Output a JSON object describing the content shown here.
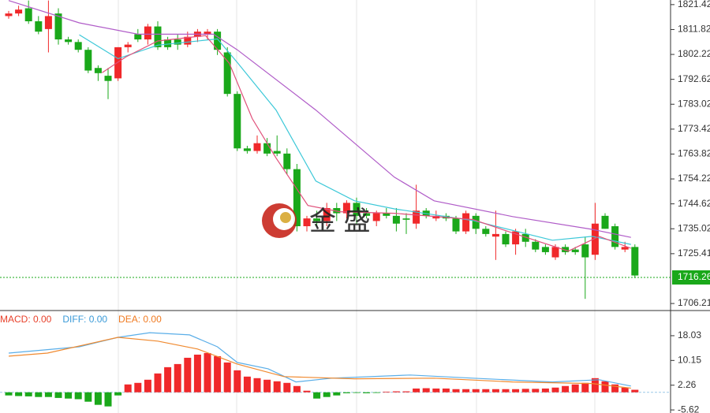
{
  "chart_data": [
    {
      "type": "candlestick",
      "up_color": "#f0282a",
      "down_color": "#1aa81a",
      "ylim": [
        1703.8,
        1823.2
      ],
      "yticks": [
        1821.42,
        1811.82,
        1802.22,
        1792.62,
        1783.02,
        1773.42,
        1763.82,
        1754.22,
        1744.62,
        1735.02,
        1725.41,
        1706.21
      ],
      "last_price": {
        "value": 1716.26,
        "color": "#1aa81a"
      },
      "watermark": "金 盛",
      "ohlc": [
        [
          1817,
          1819,
          1816,
          1818
        ],
        [
          1818,
          1821,
          1817,
          1819.5
        ],
        [
          1820,
          1823,
          1814,
          1815
        ],
        [
          1815,
          1817,
          1810,
          1811
        ],
        [
          1812,
          1823,
          1803,
          1817
        ],
        [
          1818,
          1820,
          1806,
          1808
        ],
        [
          1808,
          1809,
          1806,
          1807
        ],
        [
          1807,
          1808,
          1803,
          1804
        ],
        [
          1804,
          1805,
          1795,
          1796
        ],
        [
          1797,
          1798,
          1792,
          1795
        ],
        [
          1794,
          1797,
          1785,
          1792
        ],
        [
          1793,
          1805,
          1792,
          1805
        ],
        [
          1805,
          1807,
          1803,
          1806
        ],
        [
          1810,
          1812,
          1807,
          1808
        ],
        [
          1808,
          1814,
          1806,
          1813
        ],
        [
          1813,
          1815,
          1804,
          1805
        ],
        [
          1808,
          1809,
          1804,
          1805
        ],
        [
          1808,
          1810,
          1804,
          1806
        ],
        [
          1806,
          1811,
          1805,
          1809
        ],
        [
          1809,
          1812,
          1807,
          1811
        ],
        [
          1810,
          1812,
          1808,
          1811
        ],
        [
          1811,
          1812,
          1802,
          1804
        ],
        [
          1803,
          1805,
          1786,
          1787
        ],
        [
          1787,
          1788,
          1765,
          1766
        ],
        [
          1766,
          1767,
          1764,
          1765
        ],
        [
          1765,
          1771,
          1764,
          1768
        ],
        [
          1768,
          1770,
          1763,
          1764
        ],
        [
          1765,
          1771,
          1763,
          1764
        ],
        [
          1764,
          1766,
          1756,
          1758
        ],
        [
          1758,
          1760,
          1734,
          1736
        ],
        [
          1736,
          1740,
          1734,
          1739
        ],
        [
          1739,
          1742,
          1736,
          1738
        ],
        [
          1738,
          1745,
          1736,
          1743
        ],
        [
          1743,
          1745,
          1738,
          1741
        ],
        [
          1741,
          1746,
          1739,
          1745
        ],
        [
          1745,
          1747,
          1737,
          1740
        ],
        [
          1741,
          1743,
          1739,
          1740
        ],
        [
          1738,
          1742,
          1736,
          1741
        ],
        [
          1741,
          1743,
          1739,
          1740
        ],
        [
          1740,
          1743,
          1734,
          1737
        ],
        [
          1739,
          1741,
          1733,
          1738.5
        ],
        [
          1737,
          1752,
          1735,
          1742
        ],
        [
          1742,
          1743,
          1739,
          1740
        ],
        [
          1739,
          1742,
          1738,
          1740
        ],
        [
          1740,
          1741,
          1738,
          1739
        ],
        [
          1739,
          1740,
          1733,
          1734
        ],
        [
          1734,
          1742,
          1733,
          1741
        ],
        [
          1740,
          1741,
          1733,
          1735
        ],
        [
          1735,
          1736,
          1732,
          1733
        ],
        [
          1732,
          1742,
          1723,
          1733
        ],
        [
          1733,
          1734,
          1728,
          1729
        ],
        [
          1729,
          1735,
          1725,
          1734
        ],
        [
          1733,
          1735,
          1728,
          1730
        ],
        [
          1730,
          1731,
          1726,
          1727
        ],
        [
          1728,
          1729,
          1725,
          1726
        ],
        [
          1724,
          1729,
          1723,
          1728
        ],
        [
          1728,
          1729,
          1725,
          1726
        ],
        [
          1727,
          1728,
          1725,
          1726
        ],
        [
          1729,
          1732,
          1708,
          1724
        ],
        [
          1725,
          1745,
          1723,
          1737
        ],
        [
          1740,
          1741,
          1735,
          1735
        ],
        [
          1736,
          1737,
          1727,
          1728
        ],
        [
          1727,
          1730,
          1726,
          1728
        ],
        [
          1728,
          1729,
          1716,
          1717
        ]
      ],
      "lines": [
        {
          "color": "#b05cc8",
          "x": [
            0,
            7.1,
            13,
            20.6,
            23,
            30.9,
            38.8,
            42.8,
            50.7,
            58.7,
            62.6
          ],
          "values": [
            1823,
            1814.4,
            1810,
            1810,
            1804,
            1780.8,
            1754.9,
            1745.8,
            1739.7,
            1734.8,
            1731.7
          ]
        },
        {
          "color": "#3cc8d8",
          "x": [
            7.1,
            11,
            15,
            21,
            23,
            26.9,
            30.9,
            34.8,
            38.8,
            46.7,
            54.7,
            58.7,
            62.6
          ],
          "values": [
            1809.8,
            1800.6,
            1805.8,
            1808.2,
            1799.1,
            1780.8,
            1753.4,
            1745.8,
            1742.7,
            1738.2,
            1730.6,
            1732.1,
            1729
          ]
        },
        {
          "color": "#e0507a",
          "x": [
            9.4,
            11.8,
            15,
            19.8,
            22.2,
            24.5,
            26.9,
            30.1,
            33.3,
            38.8,
            46.7,
            50.7,
            56.3,
            59.4,
            62.6
          ],
          "values": [
            1795.2,
            1801.3,
            1807.4,
            1809.5,
            1798.8,
            1777.5,
            1762.3,
            1744,
            1741.6,
            1741,
            1738.6,
            1733.4,
            1726.4,
            1732.1,
            1727.5
          ]
        }
      ]
    },
    {
      "type": "macd",
      "ylim": [
        -6.6,
        25.8
      ],
      "yticks": [
        18.03,
        10.15,
        2.26,
        -5.62
      ],
      "legend": [
        {
          "text": "MACD: 0.00",
          "color": "#e8402a"
        },
        {
          "text": "DIFF: 0.00",
          "color": "#3a9ad8"
        },
        {
          "text": "DEA: 0.00",
          "color": "#f07a20"
        }
      ],
      "up_color": "#f0282a",
      "down_color": "#1aa81a",
      "histogram": [
        -1,
        -1.2,
        -1.3,
        -1.5,
        -1.5,
        -1.8,
        -2,
        -2.2,
        -3,
        -4,
        -4.5,
        -1,
        2.5,
        3,
        4,
        6,
        8,
        9,
        11,
        12,
        12.5,
        11.5,
        9.5,
        7,
        5,
        4.5,
        4,
        3.5,
        3,
        2,
        0.5,
        -2,
        -1.5,
        -1,
        -0.3,
        -0.2,
        -0.3,
        -0.2,
        0.2,
        0.3,
        0.3,
        1.2,
        1.3,
        1.2,
        1.2,
        1,
        1,
        1,
        1,
        1,
        1,
        1,
        1.1,
        1.1,
        1.2,
        1.5,
        2,
        2.5,
        3,
        4.5,
        3.5,
        2.5,
        1.5,
        0.8
      ],
      "lines": [
        {
          "color": "#5aaee8",
          "x": [
            0,
            7.1,
            11,
            14.2,
            18.2,
            21,
            23,
            26.1,
            28.9,
            32.5,
            40.4,
            46.7,
            54.7,
            59.4,
            62.6
          ],
          "values": [
            12.5,
            14.5,
            17.5,
            19,
            18.3,
            14.5,
            9.5,
            7.5,
            3.3,
            4.5,
            5.5,
            4.5,
            3.3,
            4,
            2
          ]
        },
        {
          "color": "#f08a30",
          "x": [
            0,
            3.9,
            11,
            15,
            19,
            23,
            27.7,
            34.8,
            42.8,
            50.7,
            58.7,
            62.6
          ],
          "values": [
            11.5,
            12.5,
            17.5,
            16.3,
            13.8,
            9,
            5,
            4.3,
            4.5,
            3.3,
            2.8,
            1.3
          ]
        }
      ]
    }
  ]
}
